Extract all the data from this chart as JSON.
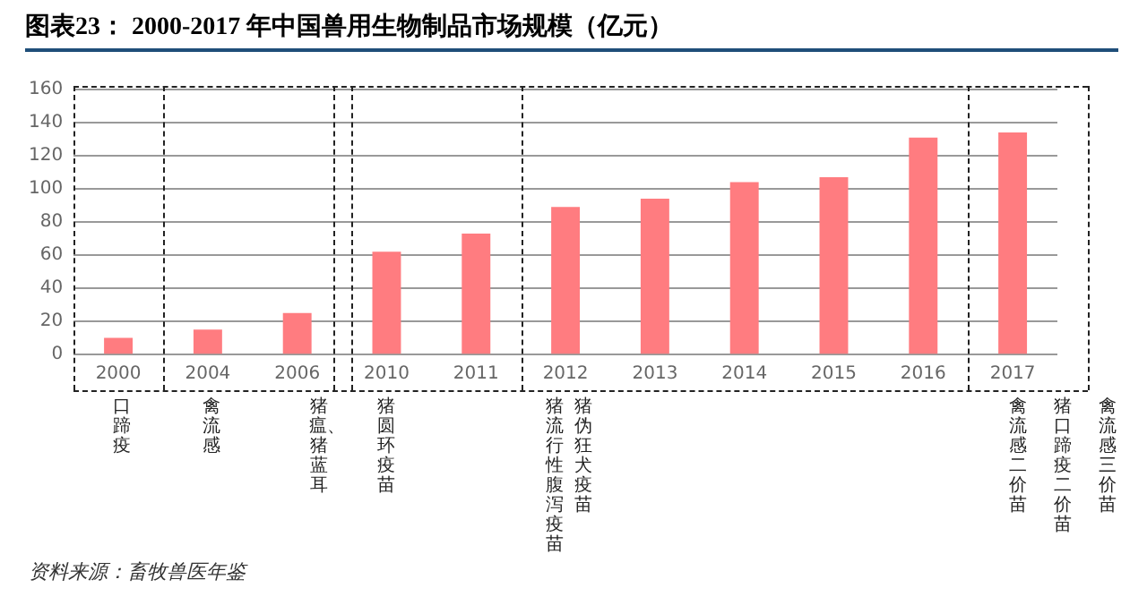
{
  "chart_data": {
    "type": "bar",
    "title": "图表23：  2000-2017 年中国兽用生物制品市场规模（亿元）",
    "categories": [
      "2000",
      "2004",
      "2006",
      "2010",
      "2011",
      "2012",
      "2013",
      "2014",
      "2015",
      "2016",
      "2017"
    ],
    "values": [
      10,
      15,
      25,
      62,
      73,
      89,
      94,
      104,
      107,
      131,
      134
    ],
    "color": "#ff7c80",
    "ylim": [
      0,
      160
    ],
    "yticks": [
      0,
      20,
      40,
      60,
      80,
      100,
      120,
      140,
      160
    ],
    "grid": "y",
    "annotations": [
      "口蹄疫",
      "禽流感",
      "猪瘟、猪蓝耳",
      "猪圆环疫苗",
      "猪流行性腹泻疫苗",
      "猪伪狂犬疫苗",
      "禽流感二价苗",
      "猪口蹄疫二价苗",
      "禽流感三价苗",
      "资料来源：畜牧兽医年鉴"
    ]
  }
}
